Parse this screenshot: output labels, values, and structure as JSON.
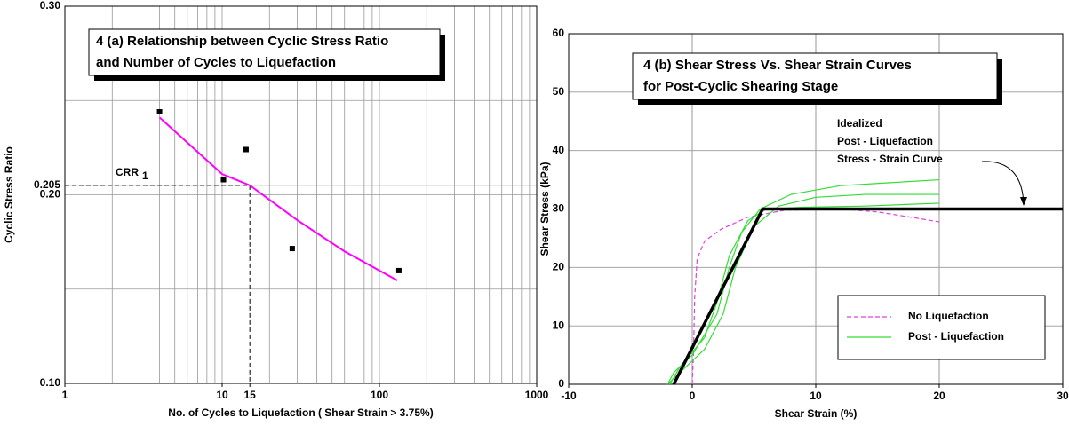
{
  "chart_data": [
    {
      "type": "scatter",
      "title_lines": [
        "4 (a)  Relationship between Cyclic Stress Ratio",
        "and Number of Cycles to Liquefaction"
      ],
      "x_label": "No. of Cycles to Liquefaction ( Shear Strain > 3.75%)",
      "y_label": "Cyclic Stress Ratio",
      "log_x": true,
      "xlim": [
        1,
        1000
      ],
      "xticks": [
        1,
        10,
        15,
        100,
        1000
      ],
      "ylim": [
        0.1,
        0.3
      ],
      "yticks": [
        {
          "value": 0.1,
          "label": "0.10"
        },
        {
          "value": 0.2,
          "label": "0.20"
        },
        0.205,
        {
          "value": 0.3,
          "label": "0.30"
        }
      ],
      "ygrid": [
        0.15,
        0.25
      ],
      "grid": true,
      "points": {
        "color": "#000000",
        "x": [
          4,
          10.2,
          14.2,
          27.9,
          133
        ],
        "values": [
          0.244,
          0.208,
          0.224,
          0.1715,
          0.1598
        ]
      },
      "curve": {
        "color": "#ff00ff",
        "x": [
          4,
          10,
          15,
          30,
          60,
          130
        ],
        "values": [
          0.241,
          0.211,
          0.205,
          0.1866,
          0.17,
          0.1546
        ]
      },
      "crr": {
        "label": "CRR",
        "subscript": "1",
        "x": 15,
        "y": 0.205
      }
    },
    {
      "type": "line",
      "title_lines": [
        "4 (b)   Shear Stress Vs. Shear Strain Curves",
        "for Post-Cyclic Shearing Stage"
      ],
      "x_label": "Shear Strain   (%)",
      "y_label": "Shear Stress   (kPa)",
      "xlim": [
        -10,
        30
      ],
      "xticks": [
        -10,
        0,
        10,
        20,
        30
      ],
      "ylim": [
        0,
        60
      ],
      "yticks": [
        0,
        10,
        20,
        30,
        40,
        50,
        60
      ],
      "grid": true,
      "legend": "lower right",
      "annotation_lines": [
        "Idealized",
        "Post - Liquefaction",
        "Stress -  Strain Curve"
      ],
      "idealized": {
        "color": "#000000",
        "x": [
          -1.5,
          5.7,
          30
        ],
        "values": [
          0,
          30,
          30
        ]
      },
      "series": [
        {
          "name": "No Liquefaction",
          "color": "#e040e0",
          "dashed": true,
          "x": [
            0,
            0.1,
            0.2,
            0.4,
            1,
            2.3,
            4.5,
            7.5,
            12,
            15,
            18,
            20
          ],
          "values": [
            0,
            5,
            15,
            21.5,
            24.5,
            26.5,
            28.6,
            29.8,
            30,
            29.5,
            28.5,
            27.8
          ]
        },
        {
          "name": "Post - Liquefaction",
          "color": "#33dd33",
          "dashed": false,
          "curves": [
            {
              "x": [
                -2,
                -1.5,
                0,
                2,
                3,
                4,
                5.5,
                8,
                12,
                16,
                20
              ],
              "values": [
                0,
                2,
                5,
                12,
                20,
                26,
                30,
                32.5,
                34,
                34.5,
                35
              ]
            },
            {
              "x": [
                -2,
                -1,
                1,
                2.5,
                3.5,
                5,
                7,
                10,
                14,
                20
              ],
              "values": [
                0,
                2,
                6,
                12,
                20,
                27,
                30.5,
                32,
                32.5,
                32.5
              ]
            },
            {
              "x": [
                -1.8,
                -1,
                1,
                2,
                3,
                4.5,
                6,
                9,
                14,
                20
              ],
              "values": [
                0,
                3,
                8,
                14,
                22,
                28,
                30,
                30.3,
                30.5,
                31
              ]
            }
          ]
        }
      ]
    }
  ]
}
